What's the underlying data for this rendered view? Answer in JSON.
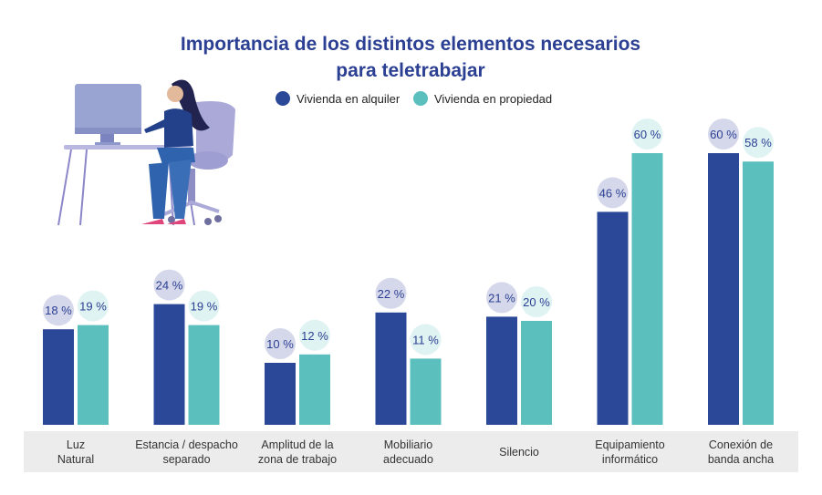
{
  "chart_data": {
    "type": "bar",
    "title": "Importancia de los distintos elementos necesarios para teletrabajar",
    "categories": [
      "Luz Natural",
      "Estancia / despacho separado",
      "Amplitud de la zona de trabajo",
      "Mobiliario adecuado",
      "Silencio",
      "Equipamiento informático",
      "Conexión de banda ancha"
    ],
    "category_lines": [
      [
        "Luz",
        "Natural"
      ],
      [
        "Estancia / despacho",
        "separado"
      ],
      [
        "Amplitud de la",
        "zona de trabajo"
      ],
      [
        "Mobiliario",
        "adecuado"
      ],
      [
        "Silencio"
      ],
      [
        "Equipamiento",
        "informático"
      ],
      [
        "Conexión de",
        "banda ancha"
      ]
    ],
    "series": [
      {
        "name": "Vivienda en alquiler",
        "color": "#2a4897",
        "bubble": "#d5d8ea",
        "values": [
          18,
          24,
          10,
          22,
          21,
          46,
          60
        ]
      },
      {
        "name": "Vivienda en propiedad",
        "color": "#5bbfbe",
        "bubble": "#dff3f3",
        "values": [
          19,
          19,
          12,
          11,
          20,
          60,
          58
        ]
      }
    ],
    "unit": "%",
    "legend": "top",
    "grid": false
  },
  "title_lines": [
    "Importancia de los distintos elementos necesarios",
    "para teletrabajar"
  ]
}
